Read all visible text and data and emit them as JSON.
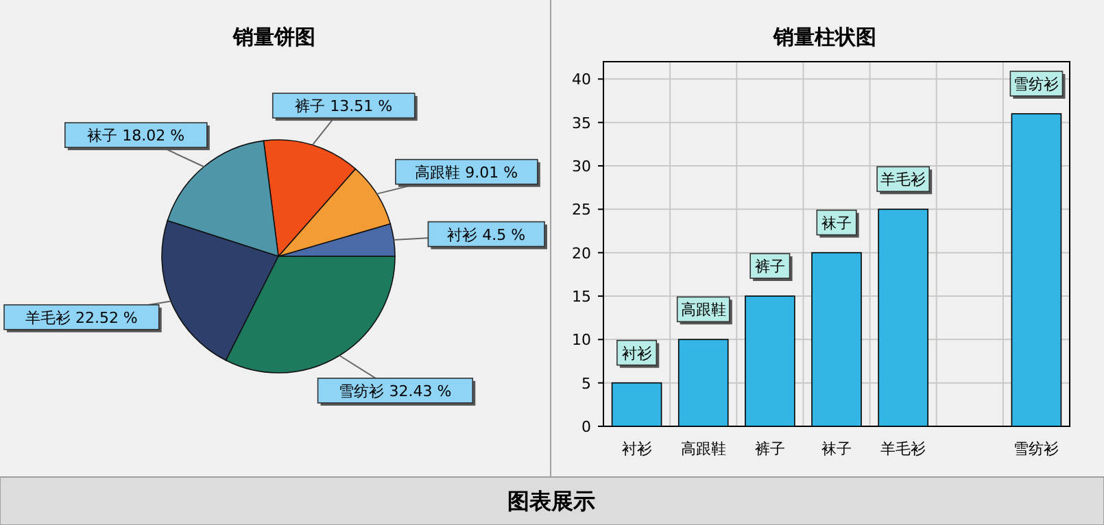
{
  "chart_data": [
    {
      "type": "pie",
      "title": "销量饼图",
      "categories": [
        "衬衫",
        "高跟鞋",
        "裤子",
        "袜子",
        "羊毛衫",
        "雪纺衫"
      ],
      "values": [
        4.5,
        9.01,
        13.51,
        18.02,
        22.52,
        32.43
      ],
      "colors": [
        "#4a6aa8",
        "#f39c35",
        "#f24e17",
        "#4f97a8",
        "#2d3f6b",
        "#1e7a5e"
      ],
      "value_labels": [
        "4.5 %",
        "9.01 %",
        "13.51 %",
        "18.02 %",
        "22.52 %",
        "32.43 %"
      ]
    },
    {
      "type": "bar",
      "title": "销量柱状图",
      "categories": [
        "衬衫",
        "高跟鞋",
        "裤子",
        "袜子",
        "羊毛衫",
        null,
        "雪纺衫"
      ],
      "values": [
        5,
        10,
        15,
        20,
        25,
        null,
        36
      ],
      "color": "#33b5e5",
      "ylim": [
        0,
        42
      ],
      "yticks": [
        0,
        5,
        10,
        15,
        20,
        25,
        30,
        35,
        40
      ],
      "grid": true,
      "annotations": [
        {
          "text": "衬衫",
          "x": "衬衫",
          "y": 5
        },
        {
          "text": "高跟鞋",
          "x": "高跟鞋",
          "y": 10
        },
        {
          "text": "裤子",
          "x": "裤子",
          "y": 15
        },
        {
          "text": "袜子",
          "x": "袜子",
          "y": 20
        },
        {
          "text": "羊毛衫",
          "x": "羊毛衫",
          "y": 25
        },
        {
          "text": "雪纺衫",
          "x": "雪纺衫",
          "y": 36
        }
      ]
    },
    {
      "type": "other",
      "title": "图表展示"
    }
  ]
}
